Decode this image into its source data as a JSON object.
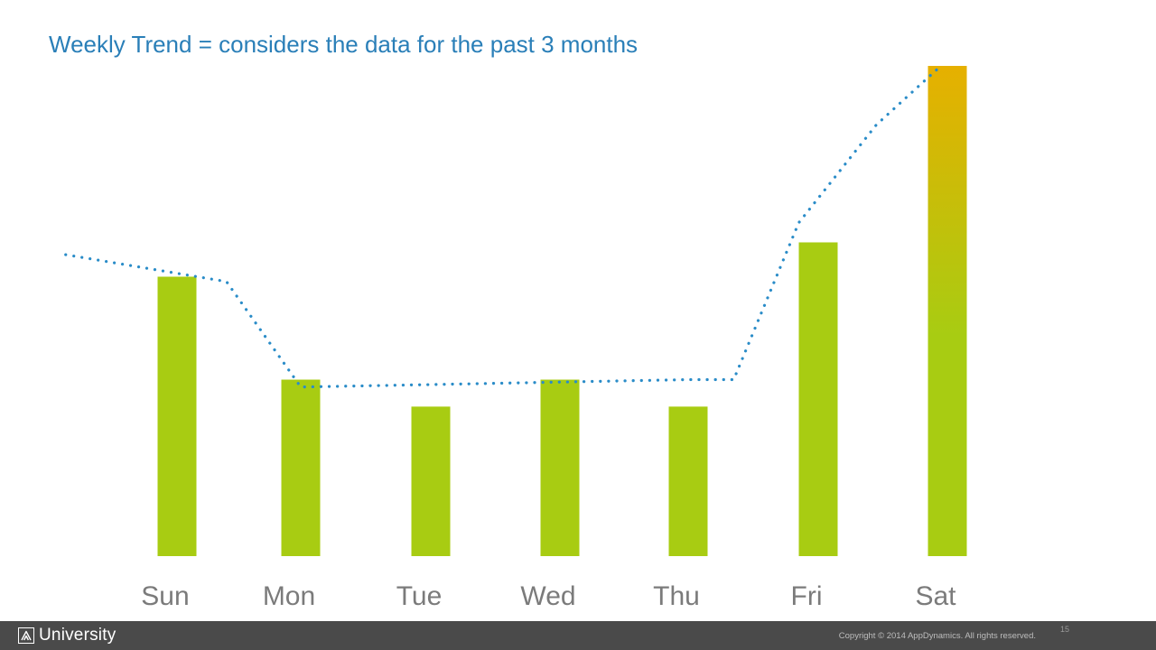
{
  "slide": {
    "title": "Weekly Trend = considers the data for the past 3 months",
    "page_number": "15"
  },
  "footer": {
    "brand": "University",
    "copyright": "Copyright © 2014 AppDynamics. All rights reserved."
  },
  "colors": {
    "title": "#2a7fb8",
    "bar": "#a8cc12",
    "bar_peak": "#e6b000",
    "trend_line": "#2a8cc8",
    "category_label": "#7b7b7b",
    "footer_bg": "#4a4a4a"
  },
  "chart_data": {
    "type": "bar",
    "categories": [
      "Sun",
      "Mon",
      "Tue",
      "Wed",
      "Thu",
      "Fri",
      "Sat"
    ],
    "series": [
      {
        "values": [
          57,
          36,
          30.5,
          36,
          30.5,
          64,
          100
        ]
      }
    ],
    "trend_line": {
      "style": "dotted",
      "points": [
        {
          "x": -0.9,
          "y": 61.5
        },
        {
          "x": 0.4,
          "y": 56
        },
        {
          "x": 1.0,
          "y": 34.5
        },
        {
          "x": 2.0,
          "y": 35
        },
        {
          "x": 3.0,
          "y": 35.5
        },
        {
          "x": 4.0,
          "y": 36
        },
        {
          "x": 4.35,
          "y": 36
        },
        {
          "x": 4.85,
          "y": 68
        },
        {
          "x": 5.45,
          "y": 88
        },
        {
          "x": 5.95,
          "y": 100
        }
      ]
    },
    "ylim": [
      0,
      100
    ],
    "axes_visible": false,
    "grid": false,
    "legend": "none"
  }
}
